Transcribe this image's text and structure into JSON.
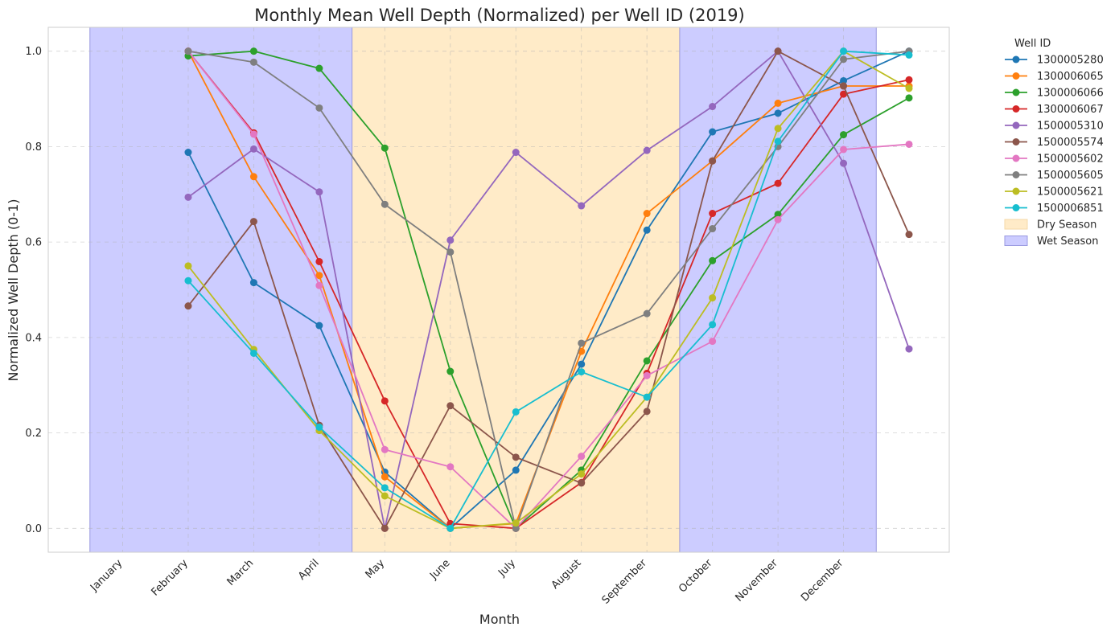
{
  "chart_data": {
    "type": "line",
    "title": "Monthly Mean Well Depth (Normalized) per Well ID (2019)",
    "xlabel": "Month",
    "ylabel": "Normalized Well Depth (0-1)",
    "x_tick_labels": [
      "January",
      "February",
      "March",
      "April",
      "May",
      "June",
      "July",
      "August",
      "September",
      "October",
      "November",
      "December"
    ],
    "y_ticks": [
      0.0,
      0.2,
      0.4,
      0.6,
      0.8,
      1.0
    ],
    "y_tick_labels": [
      "0.0",
      "0.2",
      "0.4",
      "0.6",
      "0.8",
      "1.0"
    ],
    "ylim": [
      -0.05,
      1.05
    ],
    "grid": true,
    "legend_title": "Well ID",
    "legend_position": "outside-right",
    "x": [
      2,
      3,
      4,
      5,
      6,
      7,
      8,
      9,
      10,
      11,
      12,
      13
    ],
    "series": [
      {
        "name": "1300005280",
        "color": "#1f77b4",
        "values": [
          0.788,
          0.515,
          0.425,
          0.118,
          0.0,
          0.122,
          0.344,
          0.625,
          0.831,
          0.87,
          0.938,
          1.0
        ]
      },
      {
        "name": "1300006065",
        "color": "#ff7f0e",
        "values": [
          1.0,
          0.737,
          0.53,
          0.108,
          0.0,
          0.01,
          0.371,
          0.66,
          0.77,
          0.891,
          0.927,
          0.927
        ]
      },
      {
        "name": "1300006066",
        "color": "#2ca02c",
        "values": [
          0.99,
          1.0,
          0.964,
          0.797,
          0.329,
          0.0,
          0.122,
          0.351,
          0.561,
          0.658,
          0.825,
          0.902
        ]
      },
      {
        "name": "1300006067",
        "color": "#d62728",
        "values": [
          1.0,
          0.829,
          0.559,
          0.267,
          0.01,
          0.0,
          0.096,
          0.325,
          0.66,
          0.723,
          0.91,
          0.94
        ]
      },
      {
        "name": "1500005310",
        "color": "#9467bd",
        "values": [
          0.694,
          0.795,
          0.705,
          0.0,
          0.604,
          0.788,
          0.676,
          0.792,
          0.884,
          1.0,
          0.765,
          0.376
        ]
      },
      {
        "name": "1500005574",
        "color": "#8c564b",
        "values": [
          0.466,
          0.643,
          0.216,
          0.0,
          0.257,
          0.149,
          0.095,
          0.245,
          0.77,
          1.0,
          0.927,
          0.616
        ]
      },
      {
        "name": "1500005602",
        "color": "#e377c2",
        "values": [
          1.0,
          0.826,
          0.509,
          0.165,
          0.129,
          0.0,
          0.151,
          0.32,
          0.392,
          0.647,
          0.794,
          0.805
        ]
      },
      {
        "name": "1500005605",
        "color": "#7f7f7f",
        "values": [
          1.0,
          0.977,
          0.881,
          0.679,
          0.579,
          0.0,
          0.388,
          0.45,
          0.628,
          0.8,
          0.983,
          1.0
        ]
      },
      {
        "name": "1500005621",
        "color": "#bcbd22",
        "values": [
          0.55,
          0.375,
          0.205,
          0.068,
          0.0,
          0.011,
          0.114,
          0.275,
          0.483,
          0.838,
          1.0,
          0.922
        ]
      },
      {
        "name": "1500006851",
        "color": "#17becf",
        "values": [
          0.519,
          0.367,
          0.212,
          0.085,
          0.0,
          0.244,
          0.328,
          0.275,
          0.427,
          0.811,
          1.0,
          0.992
        ]
      }
    ],
    "bands": [
      {
        "name": "Dry Season",
        "color": "#ffebc8",
        "border": "#f5d9a8",
        "ranges": [
          [
            4.5,
            9.5
          ]
        ]
      },
      {
        "name": "Wet Season",
        "color": "#ccccff",
        "border": "#9999e0",
        "ranges": [
          [
            0.5,
            4.5
          ],
          [
            9.5,
            12.5
          ]
        ]
      }
    ]
  }
}
